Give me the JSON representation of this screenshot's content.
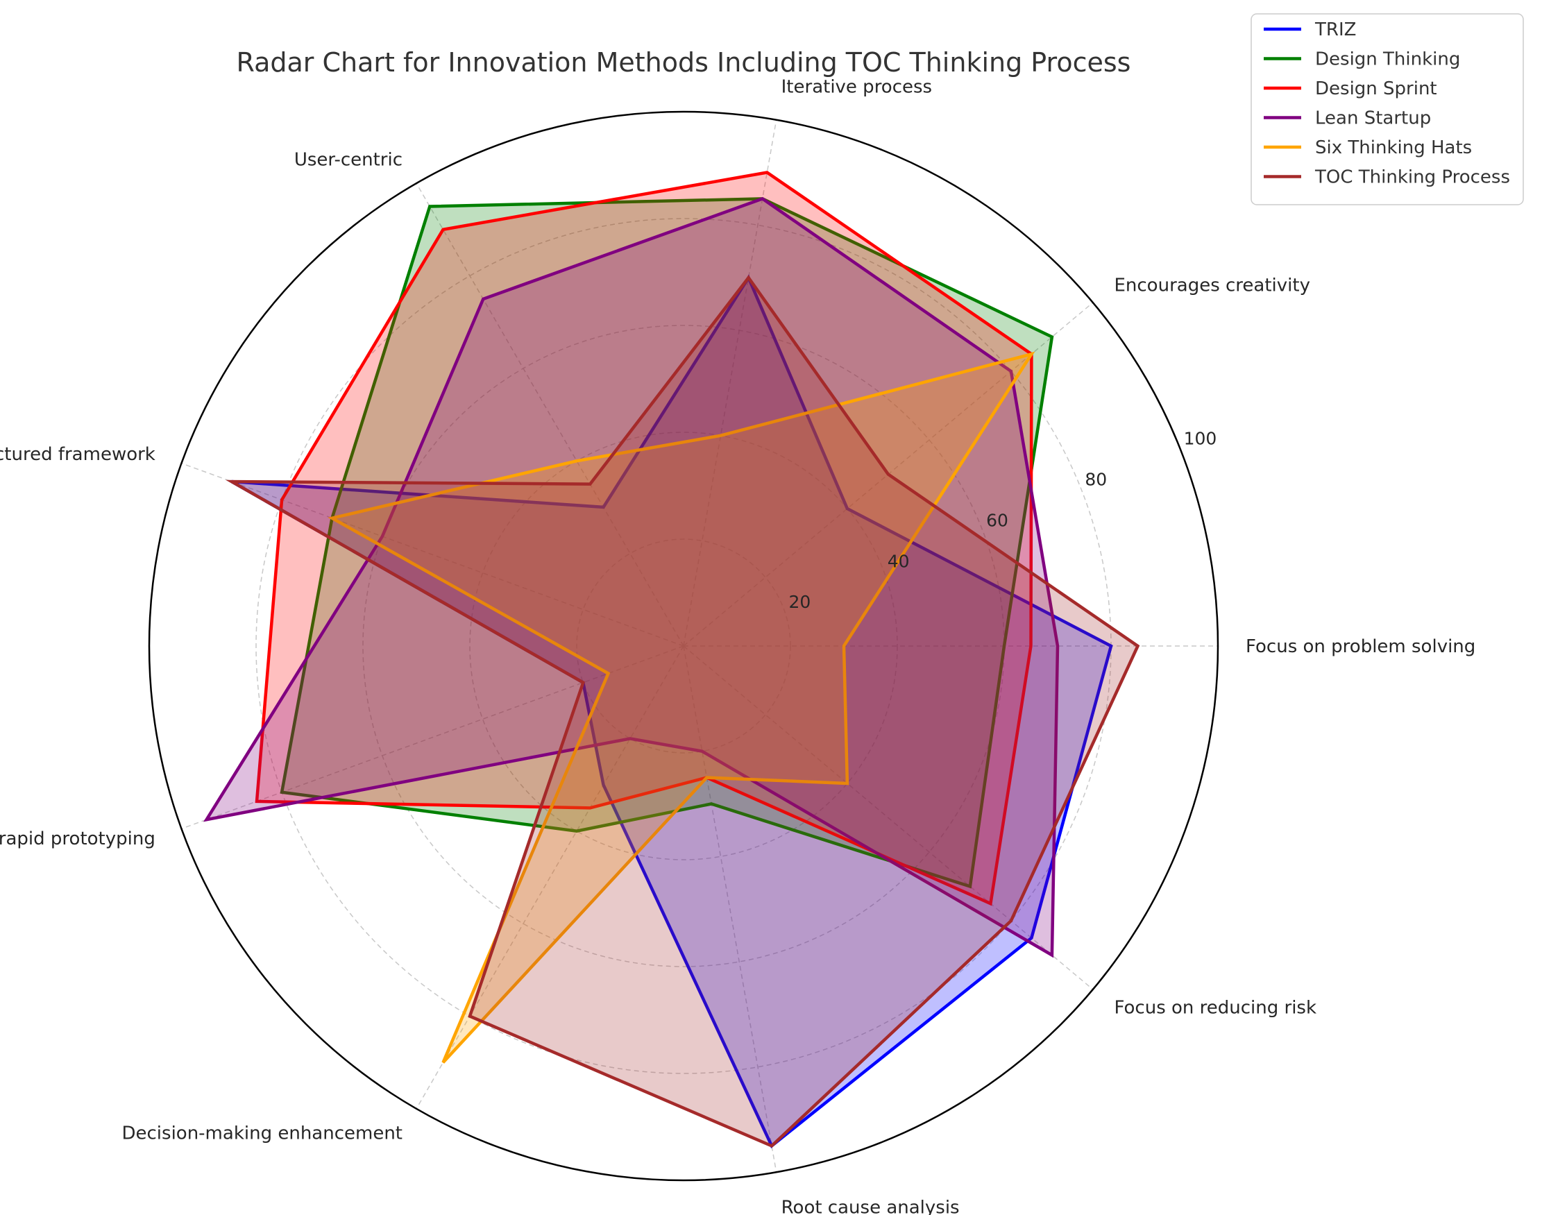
{
  "chart_data": {
    "type": "radar",
    "title": "Radar Chart for Innovation Methods Including TOC Thinking Process",
    "categories": [
      "Focus on problem solving",
      "Encourages creativity",
      "Iterative process",
      "User-centric",
      "Structured framework",
      "Emphasis on rapid prototyping",
      "Decision-making enhancement",
      "Root cause analysis",
      "Focus on reducing risk"
    ],
    "rlim": [
      0,
      100
    ],
    "r_ticks": [
      20,
      40,
      60,
      80,
      100
    ],
    "grid": true,
    "legend_position": "top-right",
    "series": [
      {
        "name": "TRIZ",
        "color": "#0000ff",
        "fill_alpha": 0.25,
        "values": [
          80,
          40,
          70,
          30,
          90,
          20,
          30,
          95,
          85
        ]
      },
      {
        "name": "Design Thinking",
        "color": "#008000",
        "fill_alpha": 0.25,
        "values": [
          60,
          90,
          85,
          95,
          70,
          80,
          40,
          30,
          70
        ]
      },
      {
        "name": "Design Sprint",
        "color": "#ff0000",
        "fill_alpha": 0.25,
        "values": [
          65,
          85,
          90,
          90,
          80,
          85,
          35,
          25,
          75
        ]
      },
      {
        "name": "Lean Startup",
        "color": "#800080",
        "fill_alpha": 0.25,
        "values": [
          70,
          80,
          85,
          75,
          60,
          95,
          20,
          20,
          90
        ]
      },
      {
        "name": "Six Thinking Hats",
        "color": "#ffa500",
        "fill_alpha": 0.25,
        "values": [
          30,
          85,
          40,
          40,
          70,
          15,
          90,
          25,
          40
        ]
      },
      {
        "name": "TOC Thinking Process",
        "color": "#a52a2a",
        "fill_alpha": 0.25,
        "values": [
          85,
          50,
          70,
          35,
          90,
          20,
          80,
          95,
          80
        ]
      }
    ]
  }
}
